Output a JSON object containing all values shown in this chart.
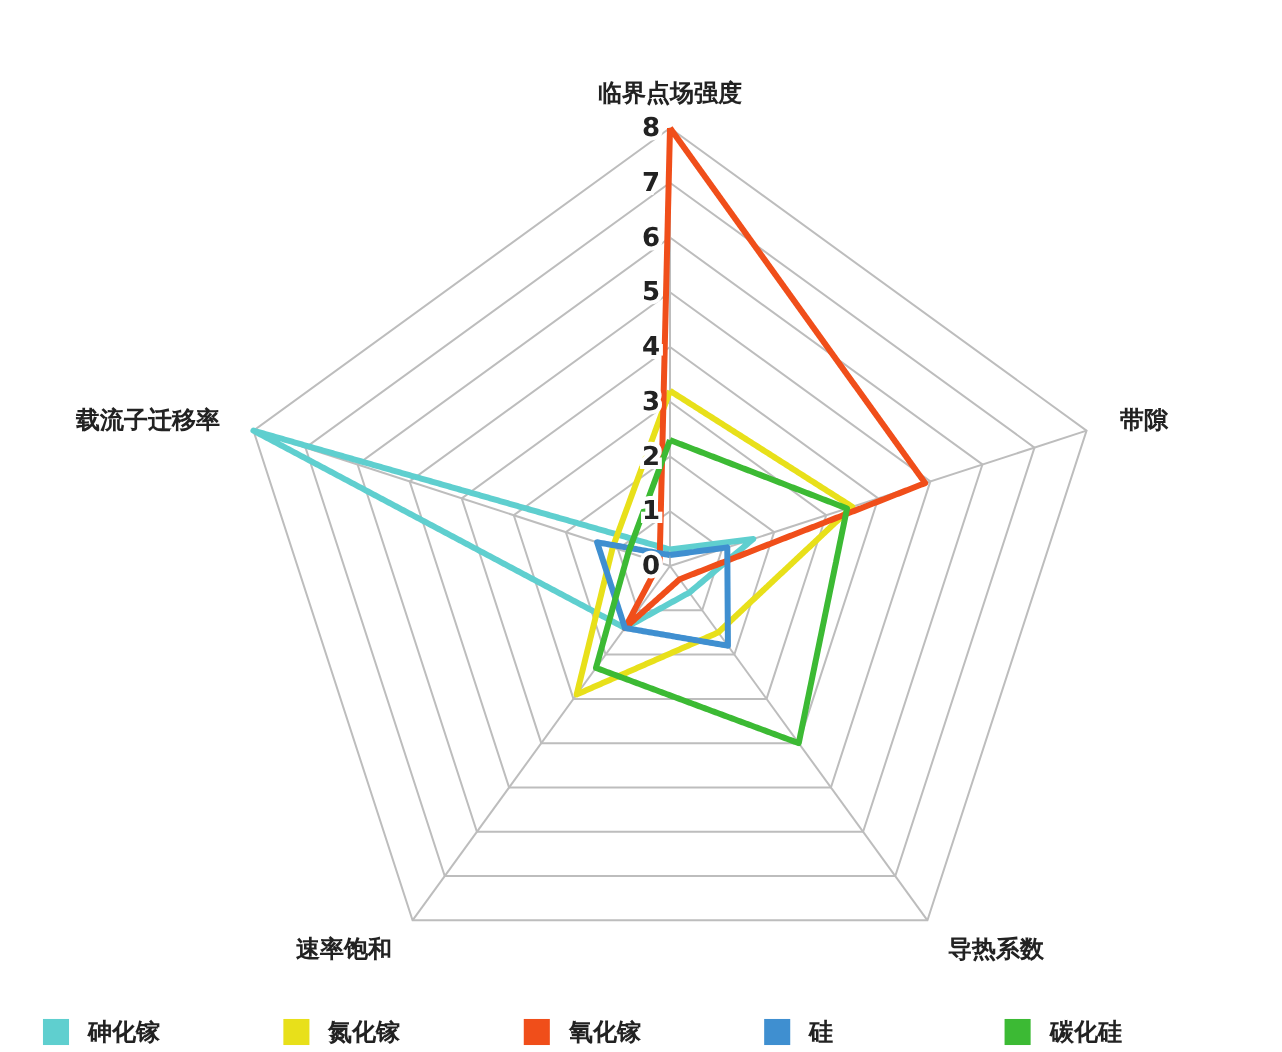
{
  "chart_data": {
    "type": "radar",
    "categories": [
      "临界点场强度",
      "带隙",
      "导热系数",
      "速率饱和",
      "载流子迁移率"
    ],
    "ylim": [
      0,
      8
    ],
    "yticks": [
      0,
      1,
      2,
      3,
      4,
      5,
      6,
      7,
      8
    ],
    "grid": true,
    "legend": "bottom",
    "marker": "none",
    "line_style": "solid",
    "series": [
      {
        "name": "砷化镓",
        "color": "#5fcfcf",
        "values": [
          0.3,
          1.6,
          0.6,
          1.4,
          8
        ]
      },
      {
        "name": "氮化镓",
        "color": "#e8e01a",
        "values": [
          3.2,
          3.5,
          1.5,
          2.9,
          1.1
        ]
      },
      {
        "name": "氧化镓",
        "color": "#f04e1a",
        "values": [
          8,
          4.9,
          0.3,
          1.4,
          0.2
        ]
      },
      {
        "name": "硅",
        "color": "#3f8fd0",
        "values": [
          0.2,
          1.1,
          1.8,
          1.4,
          1.4
        ]
      },
      {
        "name": "碳化硅",
        "color": "#3cba34",
        "values": [
          2.3,
          3.4,
          4.0,
          2.3,
          0.8
        ]
      }
    ]
  }
}
